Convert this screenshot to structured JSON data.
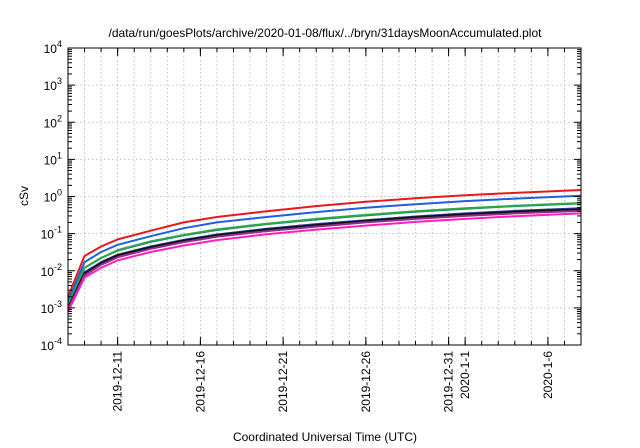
{
  "chart_data": {
    "type": "line",
    "title": "/data/run/goesPlots/archive/2020-01-08/flux/../bryn/31daysMoonAccumulated.plot",
    "xlabel": "Coordinated Universal Time (UTC)",
    "ylabel": "cSv",
    "y_scale": "log",
    "ylim": [
      0.0001,
      10000
    ],
    "xlim": [
      "2019-12-08",
      "2020-01-08"
    ],
    "grid": true,
    "x_ticks": [
      {
        "date": "2019-12-11",
        "label": "2019-12-11"
      },
      {
        "date": "2019-12-16",
        "label": "2019-12-16"
      },
      {
        "date": "2019-12-21",
        "label": "2019-12-21"
      },
      {
        "date": "2019-12-26",
        "label": "2019-12-26"
      },
      {
        "date": "2019-12-31",
        "label": "2019-12-31"
      },
      {
        "date": "2020-01-01",
        "label": "2020-1-1"
      },
      {
        "date": "2020-01-06",
        "label": "2020-1-6"
      }
    ],
    "y_ticks": [
      {
        "value": 0.0001,
        "base": "10",
        "exp": "-4"
      },
      {
        "value": 0.001,
        "base": "10",
        "exp": "-3"
      },
      {
        "value": 0.01,
        "base": "10",
        "exp": "-2"
      },
      {
        "value": 0.1,
        "base": "10",
        "exp": "-1"
      },
      {
        "value": 1,
        "base": "10",
        "exp": "0"
      },
      {
        "value": 10,
        "base": "10",
        "exp": "1"
      },
      {
        "value": 100,
        "base": "10",
        "exp": "2"
      },
      {
        "value": 1000,
        "base": "10",
        "exp": "3"
      },
      {
        "value": 10000,
        "base": "10",
        "exp": "4"
      }
    ],
    "x": [
      "2019-12-08",
      "2019-12-09",
      "2019-12-10",
      "2019-12-11",
      "2019-12-13",
      "2019-12-15",
      "2019-12-17",
      "2019-12-20",
      "2019-12-23",
      "2019-12-26",
      "2019-12-29",
      "2020-01-01",
      "2020-01-04",
      "2020-01-08"
    ],
    "series": [
      {
        "color": "#e41a1c",
        "values": [
          0.002,
          0.025,
          0.045,
          0.07,
          0.12,
          0.2,
          0.28,
          0.4,
          0.55,
          0.72,
          0.9,
          1.08,
          1.25,
          1.5
        ]
      },
      {
        "color": "#1f5fe0",
        "values": [
          0.0015,
          0.017,
          0.032,
          0.05,
          0.085,
          0.14,
          0.2,
          0.28,
          0.38,
          0.5,
          0.62,
          0.75,
          0.88,
          1.05
        ]
      },
      {
        "color": "#1f7a7a",
        "values": [
          0.0012,
          0.012,
          0.022,
          0.035,
          0.06,
          0.09,
          0.125,
          0.18,
          0.24,
          0.31,
          0.39,
          0.47,
          0.55,
          0.65
        ]
      },
      {
        "color": "#2aa84a",
        "values": [
          0.0012,
          0.012,
          0.022,
          0.036,
          0.062,
          0.093,
          0.13,
          0.185,
          0.25,
          0.32,
          0.4,
          0.48,
          0.56,
          0.67
        ]
      },
      {
        "color": "#2b3a8f",
        "values": [
          0.001,
          0.009,
          0.017,
          0.027,
          0.045,
          0.068,
          0.095,
          0.135,
          0.18,
          0.23,
          0.29,
          0.35,
          0.41,
          0.48
        ]
      },
      {
        "color": "#111111",
        "values": [
          0.001,
          0.0085,
          0.016,
          0.026,
          0.043,
          0.065,
          0.09,
          0.128,
          0.17,
          0.22,
          0.275,
          0.33,
          0.39,
          0.45
        ]
      },
      {
        "color": "#8e2f8e",
        "values": [
          0.0009,
          0.0075,
          0.0145,
          0.023,
          0.039,
          0.059,
          0.082,
          0.117,
          0.155,
          0.2,
          0.25,
          0.3,
          0.35,
          0.41
        ]
      },
      {
        "color": "#ff1fbf",
        "values": [
          0.0008,
          0.0065,
          0.012,
          0.019,
          0.032,
          0.048,
          0.067,
          0.096,
          0.128,
          0.165,
          0.207,
          0.25,
          0.295,
          0.35
        ]
      }
    ]
  }
}
